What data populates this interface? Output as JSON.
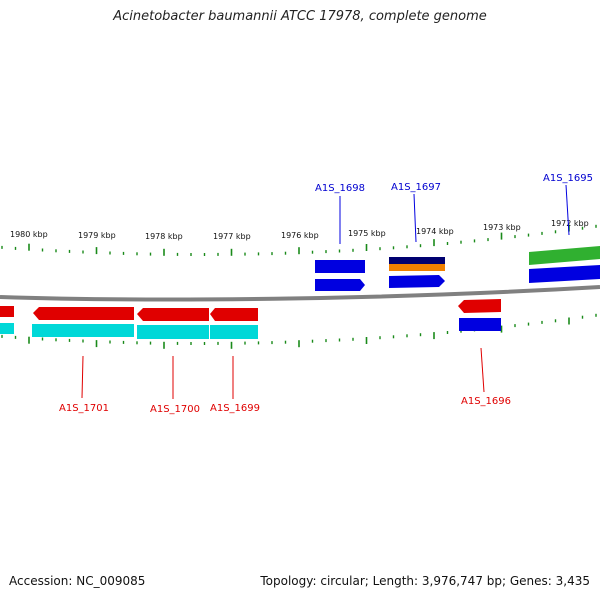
{
  "title": "Acinetobacter baumannii ATCC 17978, complete genome",
  "footer": {
    "accession": "Accession: NC_009085",
    "summary": "Topology: circular; Length: 3,976,747 bp; Genes: 3,435"
  },
  "scale_labels": [
    "1980 kbp",
    "1979 kbp",
    "1978 kbp",
    "1977 kbp",
    "1976 kbp",
    "1975 kbp",
    "1974 kbp",
    "1973 kbp",
    "1972 kbp"
  ],
  "gene_labels": {
    "top": [
      "A1S_1698",
      "A1S_1697",
      "A1S_1695"
    ],
    "bottom": [
      "A1S_1701",
      "A1S_1700",
      "A1S_1699",
      "A1S_1696"
    ]
  },
  "colors": {
    "forward_cds": "#0000e0",
    "reverse_cds": "#e00000",
    "reverse_gene": "#00d8d8",
    "dark_gene": "#000070",
    "orange_gene": "#f08000",
    "green_gene": "#30b030",
    "tick": "#1a8a1a",
    "backbone": "#808080"
  }
}
